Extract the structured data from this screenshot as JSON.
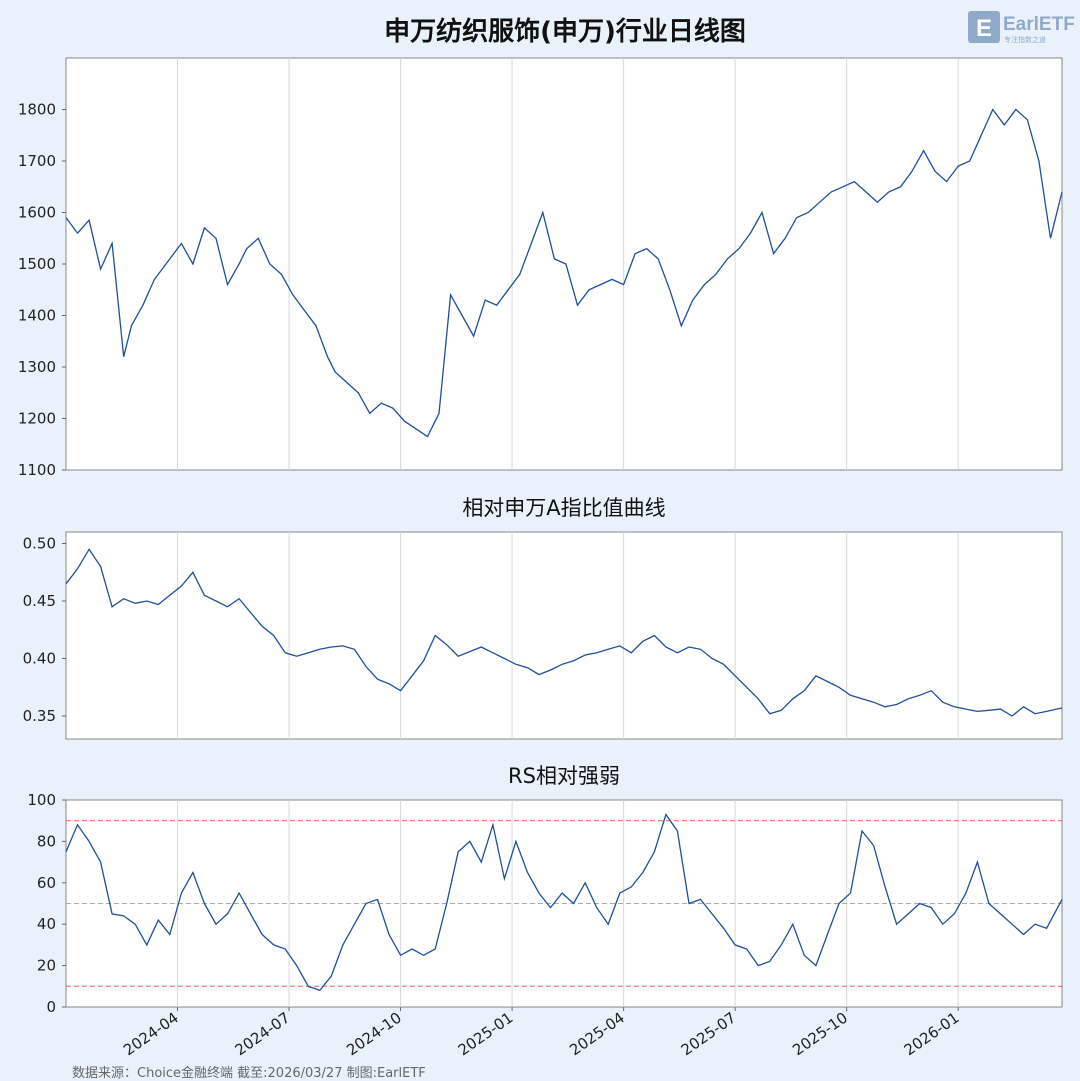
{
  "chart_data": [
    {
      "type": "line",
      "title": "申万纺织服饰(申万)行业日线图",
      "ylim": [
        1100,
        1900
      ],
      "yticks": [
        1100,
        1200,
        1300,
        1400,
        1500,
        1600,
        1700,
        1800
      ],
      "x_range": [
        0,
        25.9
      ],
      "series": [
        {
          "name": "申万纺织服饰",
          "x": [
            0,
            0.3,
            0.6,
            0.9,
            1.2,
            1.5,
            1.7,
            2.0,
            2.3,
            2.6,
            3.0,
            3.3,
            3.6,
            3.9,
            4.2,
            4.5,
            4.7,
            5.0,
            5.3,
            5.6,
            5.9,
            6.2,
            6.5,
            6.8,
            7.0,
            7.3,
            7.6,
            7.9,
            8.2,
            8.5,
            8.8,
            9.1,
            9.4,
            9.7,
            10.0,
            10.3,
            10.6,
            10.9,
            11.2,
            11.5,
            11.8,
            12.1,
            12.4,
            12.7,
            13.0,
            13.3,
            13.6,
            13.9,
            14.2,
            14.5,
            14.8,
            15.1,
            15.4,
            15.7,
            16.0,
            16.3,
            16.6,
            16.9,
            17.2,
            17.5,
            17.8,
            18.1,
            18.4,
            18.7,
            19.0,
            19.3,
            19.6,
            19.9,
            20.2,
            20.5,
            20.8,
            21.1,
            21.4,
            21.7,
            22.0,
            22.3,
            22.6,
            22.9,
            23.2,
            23.5,
            23.8,
            24.1,
            24.4,
            24.7,
            25.0,
            25.3,
            25.6,
            25.9
          ],
          "values": [
            1590,
            1560,
            1585,
            1490,
            1540,
            1320,
            1380,
            1420,
            1470,
            1500,
            1540,
            1500,
            1570,
            1550,
            1460,
            1500,
            1530,
            1550,
            1500,
            1480,
            1440,
            1410,
            1380,
            1320,
            1290,
            1270,
            1250,
            1210,
            1230,
            1220,
            1195,
            1180,
            1165,
            1210,
            1440,
            1400,
            1360,
            1430,
            1420,
            1450,
            1480,
            1540,
            1600,
            1510,
            1500,
            1420,
            1450,
            1460,
            1470,
            1460,
            1520,
            1530,
            1510,
            1450,
            1380,
            1430,
            1460,
            1480,
            1510,
            1530,
            1560,
            1600,
            1520,
            1550,
            1590,
            1600,
            1620,
            1640,
            1650,
            1660,
            1640,
            1620,
            1640,
            1650,
            1680,
            1720,
            1680,
            1660,
            1690,
            1700,
            1750,
            1800,
            1770,
            1800,
            1780,
            1700,
            1550,
            1640
          ]
        }
      ]
    },
    {
      "type": "line",
      "title": "相对申万A指比值曲线",
      "ylim": [
        0.33,
        0.51
      ],
      "yticks": [
        0.35,
        0.4,
        0.45,
        0.5
      ],
      "x_range": [
        0,
        25.9
      ],
      "series": [
        {
          "name": "相对比值",
          "x": [
            0,
            0.3,
            0.6,
            0.9,
            1.2,
            1.5,
            1.8,
            2.1,
            2.4,
            2.7,
            3.0,
            3.3,
            3.6,
            3.9,
            4.2,
            4.5,
            4.8,
            5.1,
            5.4,
            5.7,
            6.0,
            6.3,
            6.6,
            6.9,
            7.2,
            7.5,
            7.8,
            8.1,
            8.4,
            8.7,
            9.0,
            9.3,
            9.6,
            9.9,
            10.2,
            10.5,
            10.8,
            11.1,
            11.4,
            11.7,
            12.0,
            12.3,
            12.6,
            12.9,
            13.2,
            13.5,
            13.8,
            14.1,
            14.4,
            14.7,
            15.0,
            15.3,
            15.6,
            15.9,
            16.2,
            16.5,
            16.8,
            17.1,
            17.4,
            17.7,
            18.0,
            18.3,
            18.6,
            18.9,
            19.2,
            19.5,
            19.8,
            20.1,
            20.4,
            20.7,
            21.0,
            21.3,
            21.6,
            21.9,
            22.2,
            22.5,
            22.8,
            23.1,
            23.4,
            23.7,
            24.0,
            24.3,
            24.6,
            24.9,
            25.2,
            25.5,
            25.9
          ],
          "values": [
            0.465,
            0.478,
            0.495,
            0.48,
            0.445,
            0.452,
            0.448,
            0.45,
            0.447,
            0.455,
            0.463,
            0.475,
            0.455,
            0.45,
            0.445,
            0.452,
            0.44,
            0.428,
            0.42,
            0.405,
            0.402,
            0.405,
            0.408,
            0.41,
            0.411,
            0.408,
            0.393,
            0.382,
            0.378,
            0.372,
            0.385,
            0.398,
            0.42,
            0.412,
            0.402,
            0.406,
            0.41,
            0.405,
            0.4,
            0.395,
            0.392,
            0.386,
            0.39,
            0.395,
            0.398,
            0.403,
            0.405,
            0.408,
            0.411,
            0.405,
            0.415,
            0.42,
            0.41,
            0.405,
            0.41,
            0.408,
            0.4,
            0.395,
            0.385,
            0.375,
            0.365,
            0.352,
            0.355,
            0.365,
            0.372,
            0.385,
            0.38,
            0.375,
            0.368,
            0.365,
            0.362,
            0.358,
            0.36,
            0.365,
            0.368,
            0.372,
            0.362,
            0.358,
            0.356,
            0.354,
            0.355,
            0.356,
            0.35,
            0.358,
            0.352,
            0.354,
            0.357
          ]
        }
      ]
    },
    {
      "type": "line",
      "title": "RS相对强弱",
      "ylim": [
        0,
        100
      ],
      "yticks": [
        0,
        20,
        40,
        60,
        80,
        100
      ],
      "x_range": [
        0,
        25.9
      ],
      "reference_lines": [
        {
          "value": 90,
          "color": "#e86060"
        },
        {
          "value": 50,
          "color": "#aaaaaa"
        },
        {
          "value": 10,
          "color": "#e86060"
        }
      ],
      "x_tick_labels": [
        "2024-04",
        "2024-07",
        "2024-10",
        "2025-01",
        "2025-04",
        "2025-07",
        "2025-10",
        "2026-01"
      ],
      "x_tick_positions": [
        2.9,
        5.8,
        8.7,
        11.6,
        14.5,
        17.4,
        20.3,
        23.2
      ],
      "series": [
        {
          "name": "RS",
          "x": [
            0,
            0.3,
            0.6,
            0.9,
            1.2,
            1.5,
            1.8,
            2.1,
            2.4,
            2.7,
            3.0,
            3.3,
            3.6,
            3.9,
            4.2,
            4.5,
            4.8,
            5.1,
            5.4,
            5.7,
            6.0,
            6.3,
            6.6,
            6.9,
            7.2,
            7.5,
            7.8,
            8.1,
            8.4,
            8.7,
            9.0,
            9.3,
            9.6,
            9.9,
            10.2,
            10.5,
            10.8,
            11.1,
            11.4,
            11.7,
            12.0,
            12.3,
            12.6,
            12.9,
            13.2,
            13.5,
            13.8,
            14.1,
            14.4,
            14.7,
            15.0,
            15.3,
            15.6,
            15.9,
            16.2,
            16.5,
            16.8,
            17.1,
            17.4,
            17.7,
            18.0,
            18.3,
            18.6,
            18.9,
            19.2,
            19.5,
            19.8,
            20.1,
            20.4,
            20.7,
            21.0,
            21.3,
            21.6,
            21.9,
            22.2,
            22.5,
            22.8,
            23.1,
            23.4,
            23.7,
            24.0,
            24.3,
            24.6,
            24.9,
            25.2,
            25.5,
            25.9
          ],
          "values": [
            75,
            88,
            80,
            70,
            45,
            44,
            40,
            30,
            42,
            35,
            55,
            65,
            50,
            40,
            45,
            55,
            45,
            35,
            30,
            28,
            20,
            10,
            8,
            15,
            30,
            40,
            50,
            52,
            35,
            25,
            28,
            25,
            28,
            50,
            75,
            80,
            70,
            88,
            62,
            80,
            65,
            55,
            48,
            55,
            50,
            60,
            48,
            40,
            55,
            58,
            65,
            75,
            93,
            85,
            50,
            52,
            45,
            38,
            30,
            28,
            20,
            22,
            30,
            40,
            25,
            20,
            35,
            50,
            55,
            85,
            78,
            58,
            40,
            45,
            50,
            48,
            40,
            45,
            55,
            70,
            50,
            45,
            40,
            35,
            40,
            38,
            52
          ]
        }
      ]
    }
  ],
  "footer_text": "数据来源：Choice金融终端 截至:2026/03/27 制图:EarlETF",
  "logo": {
    "brand": "EarlETF",
    "tagline": "专注指数之道"
  },
  "colors": {
    "line": "#1f4e9a",
    "grid": "#d9d9d9",
    "axis": "#888888",
    "background": "#e9f2fb",
    "plot_bg": "#ffffff"
  }
}
